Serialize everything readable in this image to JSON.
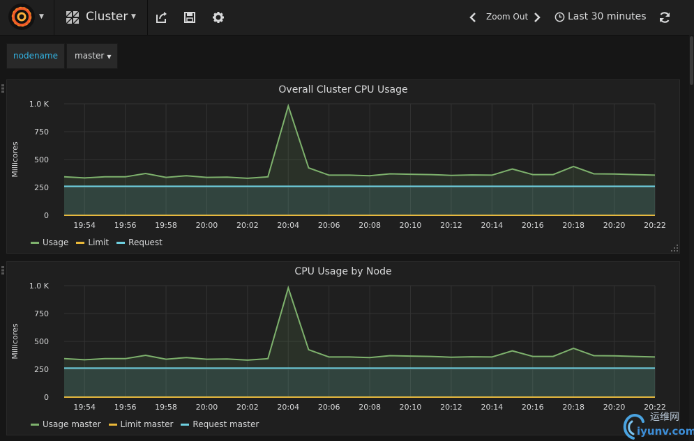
{
  "navbar": {
    "dashboard_title": "Cluster",
    "zoom_out_label": "Zoom Out",
    "time_range_label": "Last 30 minutes"
  },
  "variables": {
    "name": "nodename",
    "value": "master"
  },
  "colors": {
    "usage": "#7eb26d",
    "limit": "#eab839",
    "request": "#6ed0e0",
    "grid": "#333333",
    "axis_text": "#d8d9da"
  },
  "watermark": {
    "text": "运维网",
    "sub": "iyunv.com"
  },
  "chart_data": [
    {
      "type": "line",
      "title": "Overall Cluster CPU Usage",
      "ylabel": "Millicores",
      "ylim": [
        0,
        1000
      ],
      "yticks": [
        "0",
        "250",
        "500",
        "750",
        "1.0 K"
      ],
      "xticks": [
        "19:54",
        "19:56",
        "19:58",
        "20:00",
        "20:02",
        "20:04",
        "20:06",
        "20:08",
        "20:10",
        "20:12",
        "20:14",
        "20:16",
        "20:18",
        "20:20",
        "20:22"
      ],
      "x_minutes": [
        0,
        1,
        2,
        3,
        4,
        5,
        6,
        7,
        8,
        9,
        10,
        11,
        12,
        13,
        14,
        15,
        16,
        17,
        18,
        19,
        20,
        21,
        22,
        23,
        24,
        25,
        26,
        27,
        28,
        29
      ],
      "series": [
        {
          "name": "Usage",
          "color": "#7eb26d",
          "fill": true,
          "values": [
            345,
            335,
            345,
            345,
            375,
            340,
            355,
            340,
            342,
            332,
            345,
            980,
            425,
            360,
            360,
            355,
            372,
            368,
            365,
            358,
            362,
            360,
            415,
            365,
            365,
            438,
            372,
            370,
            365,
            360
          ]
        },
        {
          "name": "Limit",
          "color": "#eab839",
          "fill": false,
          "values": [
            0,
            0,
            0,
            0,
            0,
            0,
            0,
            0,
            0,
            0,
            0,
            0,
            0,
            0,
            0,
            0,
            0,
            0,
            0,
            0,
            0,
            0,
            0,
            0,
            0,
            0,
            0,
            0,
            0,
            0
          ]
        },
        {
          "name": "Request",
          "color": "#6ed0e0",
          "fill": true,
          "values": [
            260,
            260,
            260,
            260,
            260,
            260,
            260,
            260,
            260,
            260,
            260,
            260,
            260,
            260,
            260,
            260,
            260,
            260,
            260,
            260,
            260,
            260,
            260,
            260,
            260,
            260,
            260,
            260,
            260,
            260
          ]
        }
      ],
      "legend": [
        "Usage",
        "Limit",
        "Request"
      ]
    },
    {
      "type": "line",
      "title": "CPU Usage by Node",
      "ylabel": "Millicores",
      "ylim": [
        0,
        1000
      ],
      "yticks": [
        "0",
        "250",
        "500",
        "750",
        "1.0 K"
      ],
      "xticks": [
        "19:54",
        "19:56",
        "19:58",
        "20:00",
        "20:02",
        "20:04",
        "20:06",
        "20:08",
        "20:10",
        "20:12",
        "20:14",
        "20:16",
        "20:18",
        "20:20",
        "20:22"
      ],
      "x_minutes": [
        0,
        1,
        2,
        3,
        4,
        5,
        6,
        7,
        8,
        9,
        10,
        11,
        12,
        13,
        14,
        15,
        16,
        17,
        18,
        19,
        20,
        21,
        22,
        23,
        24,
        25,
        26,
        27,
        28,
        29
      ],
      "series": [
        {
          "name": "Usage master",
          "color": "#7eb26d",
          "fill": true,
          "values": [
            345,
            335,
            345,
            345,
            375,
            340,
            355,
            340,
            342,
            332,
            345,
            980,
            425,
            360,
            360,
            355,
            372,
            368,
            365,
            358,
            362,
            360,
            415,
            365,
            365,
            438,
            372,
            370,
            365,
            360
          ]
        },
        {
          "name": "Limit master",
          "color": "#eab839",
          "fill": false,
          "values": [
            0,
            0,
            0,
            0,
            0,
            0,
            0,
            0,
            0,
            0,
            0,
            0,
            0,
            0,
            0,
            0,
            0,
            0,
            0,
            0,
            0,
            0,
            0,
            0,
            0,
            0,
            0,
            0,
            0,
            0
          ]
        },
        {
          "name": "Request master",
          "color": "#6ed0e0",
          "fill": true,
          "values": [
            260,
            260,
            260,
            260,
            260,
            260,
            260,
            260,
            260,
            260,
            260,
            260,
            260,
            260,
            260,
            260,
            260,
            260,
            260,
            260,
            260,
            260,
            260,
            260,
            260,
            260,
            260,
            260,
            260,
            260
          ]
        }
      ],
      "legend": [
        "Usage master",
        "Limit master",
        "Request master"
      ]
    }
  ]
}
